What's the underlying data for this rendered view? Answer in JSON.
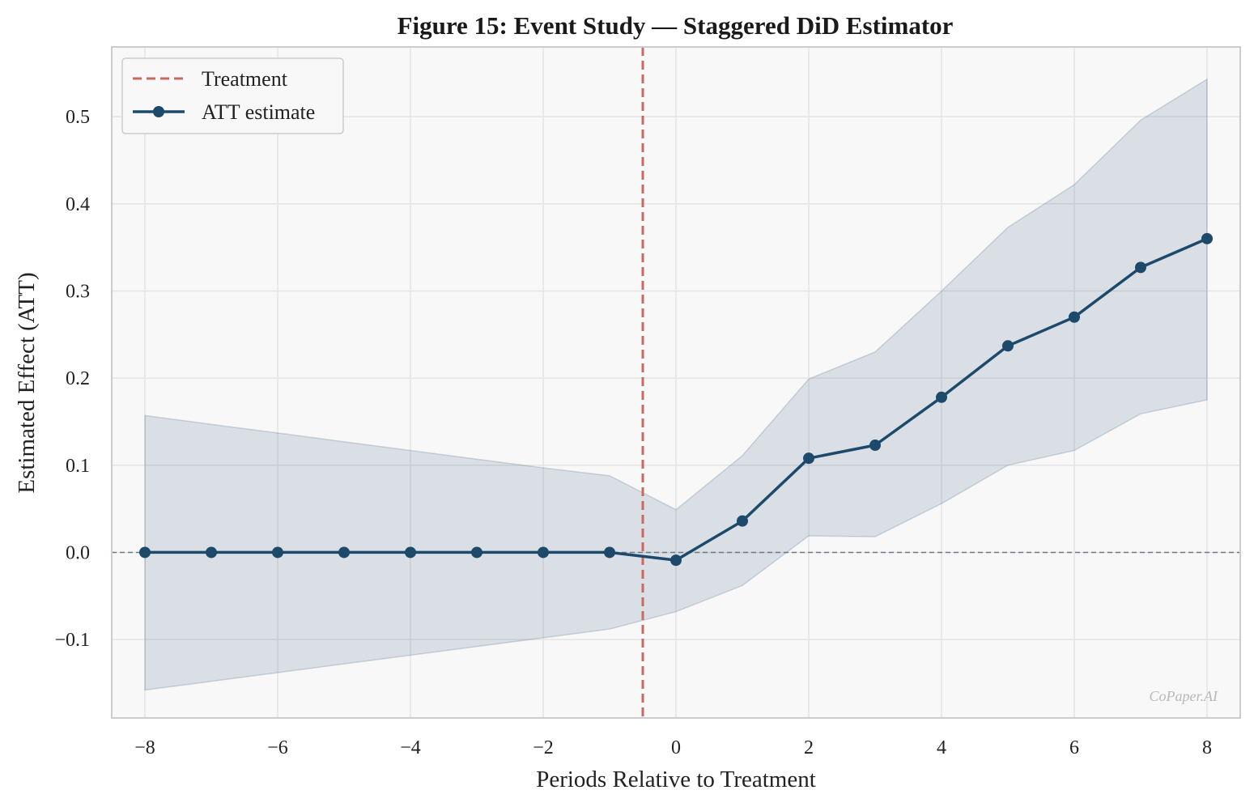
{
  "chart_data": {
    "type": "line",
    "title": "Figure 15: Event Study — Staggered DiD Estimator",
    "xlabel": "Periods Relative to Treatment",
    "ylabel": "Estimated Effect (ATT)",
    "xlim": [
      -8.5,
      8.5
    ],
    "ylim": [
      -0.19,
      0.58
    ],
    "xticks": [
      -8,
      -6,
      -4,
      -2,
      0,
      2,
      4,
      6,
      8
    ],
    "xtick_labels": [
      "−8",
      "−6",
      "−4",
      "−2",
      "0",
      "2",
      "4",
      "6",
      "8"
    ],
    "yticks": [
      -0.1,
      0.0,
      0.1,
      0.2,
      0.3,
      0.4,
      0.5
    ],
    "ytick_labels": [
      "−0.1",
      "0.0",
      "0.1",
      "0.2",
      "0.3",
      "0.4",
      "0.5"
    ],
    "grid": true,
    "legend_position": "top-left",
    "treatment_line_x": -0.5,
    "zero_line_y": 0.0,
    "colors": {
      "series": "#1d4a6b",
      "band": "#1d4a6b",
      "treatment": "#c96a62",
      "zero": "#6a7a88",
      "grid": "#e4e4e4",
      "plot_bg": "#f8f8f8",
      "frame": "#cccccc"
    },
    "series": [
      {
        "name": "ATT estimate",
        "x": [
          -8,
          -7,
          -6,
          -5,
          -4,
          -3,
          -2,
          -1,
          0,
          1,
          2,
          3,
          4,
          5,
          6,
          7,
          8
        ],
        "y": [
          0.0,
          0.0,
          0.0,
          0.0,
          0.0,
          0.0,
          0.0,
          0.0,
          -0.009,
          0.036,
          0.108,
          0.123,
          0.178,
          0.237,
          0.27,
          0.327,
          0.36
        ],
        "ci_lower": [
          -0.158,
          -0.148,
          -0.138,
          -0.128,
          -0.118,
          -0.108,
          -0.098,
          -0.088,
          -0.068,
          -0.038,
          0.019,
          0.018,
          0.056,
          0.1,
          0.117,
          0.159,
          0.175
        ],
        "ci_upper": [
          0.157,
          0.147,
          0.137,
          0.127,
          0.117,
          0.107,
          0.097,
          0.088,
          0.049,
          0.111,
          0.199,
          0.23,
          0.3,
          0.373,
          0.422,
          0.496,
          0.543
        ]
      }
    ],
    "legend": [
      {
        "label": "Treatment",
        "style": "dashed-line"
      },
      {
        "label": "ATT estimate",
        "style": "line-marker"
      }
    ],
    "watermark": "CoPaper.AI"
  }
}
